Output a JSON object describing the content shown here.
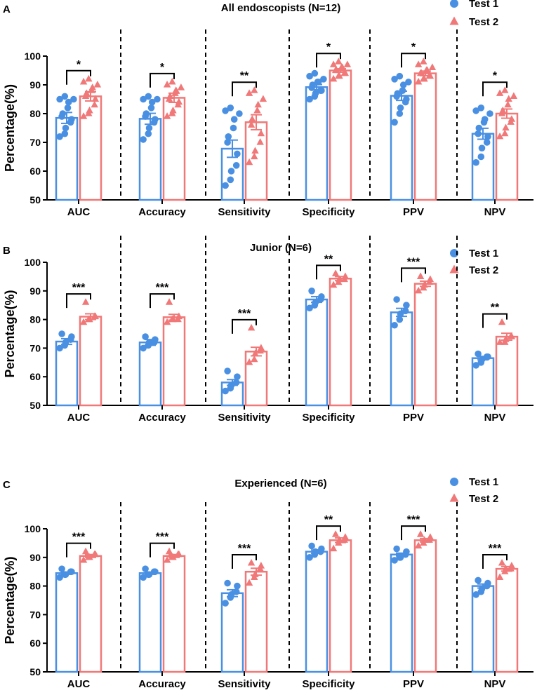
{
  "colors": {
    "test1": "#4A90E2",
    "test2": "#F07878",
    "axis": "#000000"
  },
  "chart_data": [
    {
      "type": "bar",
      "panel": "A",
      "title": "All endoscopists (N=12)",
      "ylabel": "Percentage(%)",
      "ylim": [
        50,
        100
      ],
      "yticks": [
        "50",
        "60",
        "70",
        "80",
        "90",
        "100"
      ],
      "categories": [
        "AUC",
        "Accuracy",
        "Sensitivity",
        "Specificity",
        "PPV",
        "NPV"
      ],
      "series": [
        {
          "name": "Test 1",
          "marker": "circle",
          "values": [
            78.5,
            78.2,
            67.8,
            89.2,
            86.2,
            73.0
          ],
          "sem": [
            1.9,
            1.9,
            3.0,
            0.9,
            1.6,
            1.9
          ],
          "points": [
            [
              72,
              73,
              75,
              77,
              78,
              79,
              80,
              82,
              84,
              85,
              85,
              86
            ],
            [
              71,
              73,
              75,
              77,
              78,
              79,
              80,
              82,
              84,
              85,
              85,
              86
            ],
            [
              55,
              57,
              60,
              62,
              66,
              70,
              72,
              75,
              78,
              80,
              81,
              82
            ],
            [
              85,
              86,
              87,
              88,
              88,
              89,
              90,
              91,
              91,
              92,
              93,
              94
            ],
            [
              77,
              80,
              82,
              84,
              85,
              86,
              87,
              88,
              90,
              91,
              92,
              93
            ],
            [
              63,
              65,
              68,
              70,
              72,
              73,
              75,
              77,
              78,
              80,
              81,
              82
            ]
          ]
        },
        {
          "name": "Test 2",
          "marker": "triangle",
          "values": [
            86.0,
            85.5,
            77.0,
            95.0,
            94.0,
            80.0
          ],
          "sem": [
            1.6,
            1.6,
            2.6,
            0.6,
            0.8,
            1.6
          ],
          "points": [
            [
              79,
              80,
              81,
              83,
              85,
              86,
              87,
              88,
              89,
              90,
              91,
              92
            ],
            [
              79,
              80,
              81,
              83,
              84,
              85,
              86,
              87,
              88,
              89,
              90,
              91
            ],
            [
              63,
              65,
              67,
              70,
              73,
              76,
              78,
              81,
              83,
              85,
              87,
              88
            ],
            [
              92,
              93,
              93,
              94,
              94,
              95,
              95,
              96,
              96,
              97,
              97,
              98
            ],
            [
              91,
              92,
              92,
              93,
              93,
              94,
              94,
              95,
              95,
              96,
              97,
              98
            ],
            [
              72,
              73,
              75,
              77,
              78,
              80,
              81,
              83,
              85,
              86,
              87,
              88
            ]
          ]
        }
      ],
      "significance": [
        "*",
        "*",
        "**",
        "*",
        "*",
        "*"
      ]
    },
    {
      "type": "bar",
      "panel": "B",
      "title": "Junior (N=6)",
      "ylabel": "Percentage(%)",
      "ylim": [
        50,
        100
      ],
      "yticks": [
        "50",
        "60",
        "70",
        "80",
        "90",
        "100"
      ],
      "categories": [
        "AUC",
        "Accuracy",
        "Sensitivity",
        "Specificity",
        "PPV",
        "NPV"
      ],
      "series": [
        {
          "name": "Test 1",
          "marker": "circle",
          "values": [
            72.3,
            72.0,
            58.0,
            87.0,
            82.5,
            66.5
          ],
          "sem": [
            1.0,
            1.0,
            1.0,
            1.0,
            1.4,
            0.6
          ],
          "points": [
            [
              70,
              71,
              72,
              73,
              74,
              75
            ],
            [
              70,
              71,
              72,
              72,
              73,
              74
            ],
            [
              55,
              56,
              57,
              58,
              60,
              62
            ],
            [
              84,
              85,
              86,
              87,
              88,
              90
            ],
            [
              78,
              80,
              82,
              83,
              85,
              87
            ],
            [
              64,
              65,
              66,
              67,
              67,
              68
            ]
          ]
        },
        {
          "name": "Test 2",
          "marker": "triangle",
          "values": [
            81.0,
            80.8,
            68.8,
            94.3,
            92.5,
            74.0
          ],
          "sem": [
            1.0,
            1.0,
            1.5,
            0.7,
            0.9,
            1.2
          ],
          "points": [
            [
              79,
              80,
              80,
              81,
              81,
              86
            ],
            [
              79,
              80,
              80,
              80,
              81,
              86
            ],
            [
              65,
              66,
              68,
              69,
              70,
              77
            ],
            [
              92,
              93,
              94,
              94,
              95,
              96
            ],
            [
              90,
              91,
              92,
              93,
              94,
              95
            ],
            [
              72,
              72,
              73,
              74,
              74,
              79
            ]
          ]
        }
      ],
      "significance": [
        "***",
        "***",
        "***",
        "**",
        "***",
        "**"
      ]
    },
    {
      "type": "bar",
      "panel": "C",
      "title": "Experienced (N=6)",
      "ylabel": "Percentage(%)",
      "ylim": [
        50,
        100
      ],
      "yticks": [
        "50",
        "60",
        "70",
        "80",
        "90",
        "100"
      ],
      "categories": [
        "AUC",
        "Accuracy",
        "Sensitivity",
        "Specificity",
        "PPV",
        "NPV"
      ],
      "series": [
        {
          "name": "Test 1",
          "marker": "circle",
          "values": [
            84.5,
            84.5,
            77.5,
            92.0,
            91.0,
            80.0
          ],
          "sem": [
            0.4,
            0.4,
            1.2,
            0.6,
            0.5,
            0.7
          ],
          "points": [
            [
              83,
              84,
              84,
              85,
              85,
              86
            ],
            [
              83,
              84,
              84,
              85,
              85,
              86
            ],
            [
              74,
              76,
              77,
              78,
              80,
              81
            ],
            [
              90,
              91,
              92,
              92,
              93,
              94
            ],
            [
              89,
              90,
              90,
              91,
              92,
              93
            ],
            [
              77,
              78,
              79,
              80,
              81,
              82
            ]
          ]
        },
        {
          "name": "Test 2",
          "marker": "triangle",
          "values": [
            90.5,
            90.5,
            85.0,
            96.0,
            96.0,
            86.0
          ],
          "sem": [
            0.5,
            0.5,
            1.2,
            0.8,
            0.6,
            0.8
          ],
          "points": [
            [
              89,
              90,
              90,
              91,
              91,
              92
            ],
            [
              89,
              90,
              90,
              91,
              91,
              92
            ],
            [
              81,
              83,
              84,
              86,
              87,
              88
            ],
            [
              93,
              95,
              96,
              96,
              97,
              98
            ],
            [
              94,
              95,
              96,
              96,
              97,
              98
            ],
            [
              83,
              85,
              86,
              86,
              87,
              88
            ]
          ]
        }
      ],
      "significance": [
        "***",
        "***",
        "***",
        "**",
        "***",
        "***"
      ]
    }
  ]
}
